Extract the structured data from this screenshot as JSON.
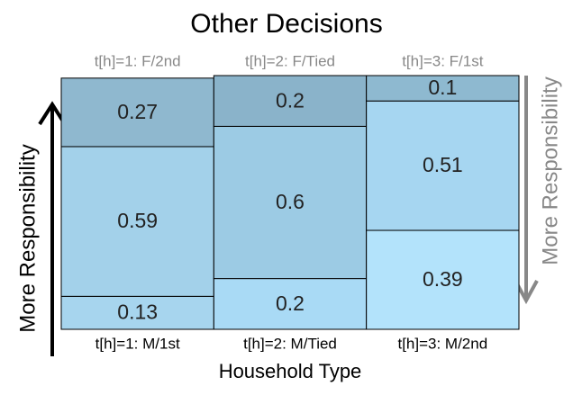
{
  "chart_data": {
    "type": "bar",
    "stacked": true,
    "title": "Other Decisions",
    "xlabel": "Household Type",
    "categories": [
      "t[h]=1: M/1st",
      "t[h]=2: M/Tied",
      "t[h]=3: M/2nd"
    ],
    "top_categories": [
      "t[h]=1: F/2nd",
      "t[h]=2: F/Tied",
      "t[h]=3: F/1st"
    ],
    "ylabel": "More Responsibility",
    "y2label": "More Responsibility",
    "ylim": [
      0,
      1
    ],
    "series": [
      {
        "colors": [
          "#a7d5ee",
          "#a9daf5",
          "#b3e3fb"
        ],
        "values": [
          0.13,
          0.2,
          0.39
        ]
      },
      {
        "colors": [
          "#a3d1ea",
          "#9ccbe4",
          "#a6d6f1"
        ],
        "values": [
          0.59,
          0.6,
          0.51
        ]
      },
      {
        "colors": [
          "#8fb8cf",
          "#8ab3ca",
          "#8eb9d0"
        ],
        "values": [
          0.27,
          0.2,
          0.1
        ]
      }
    ]
  }
}
